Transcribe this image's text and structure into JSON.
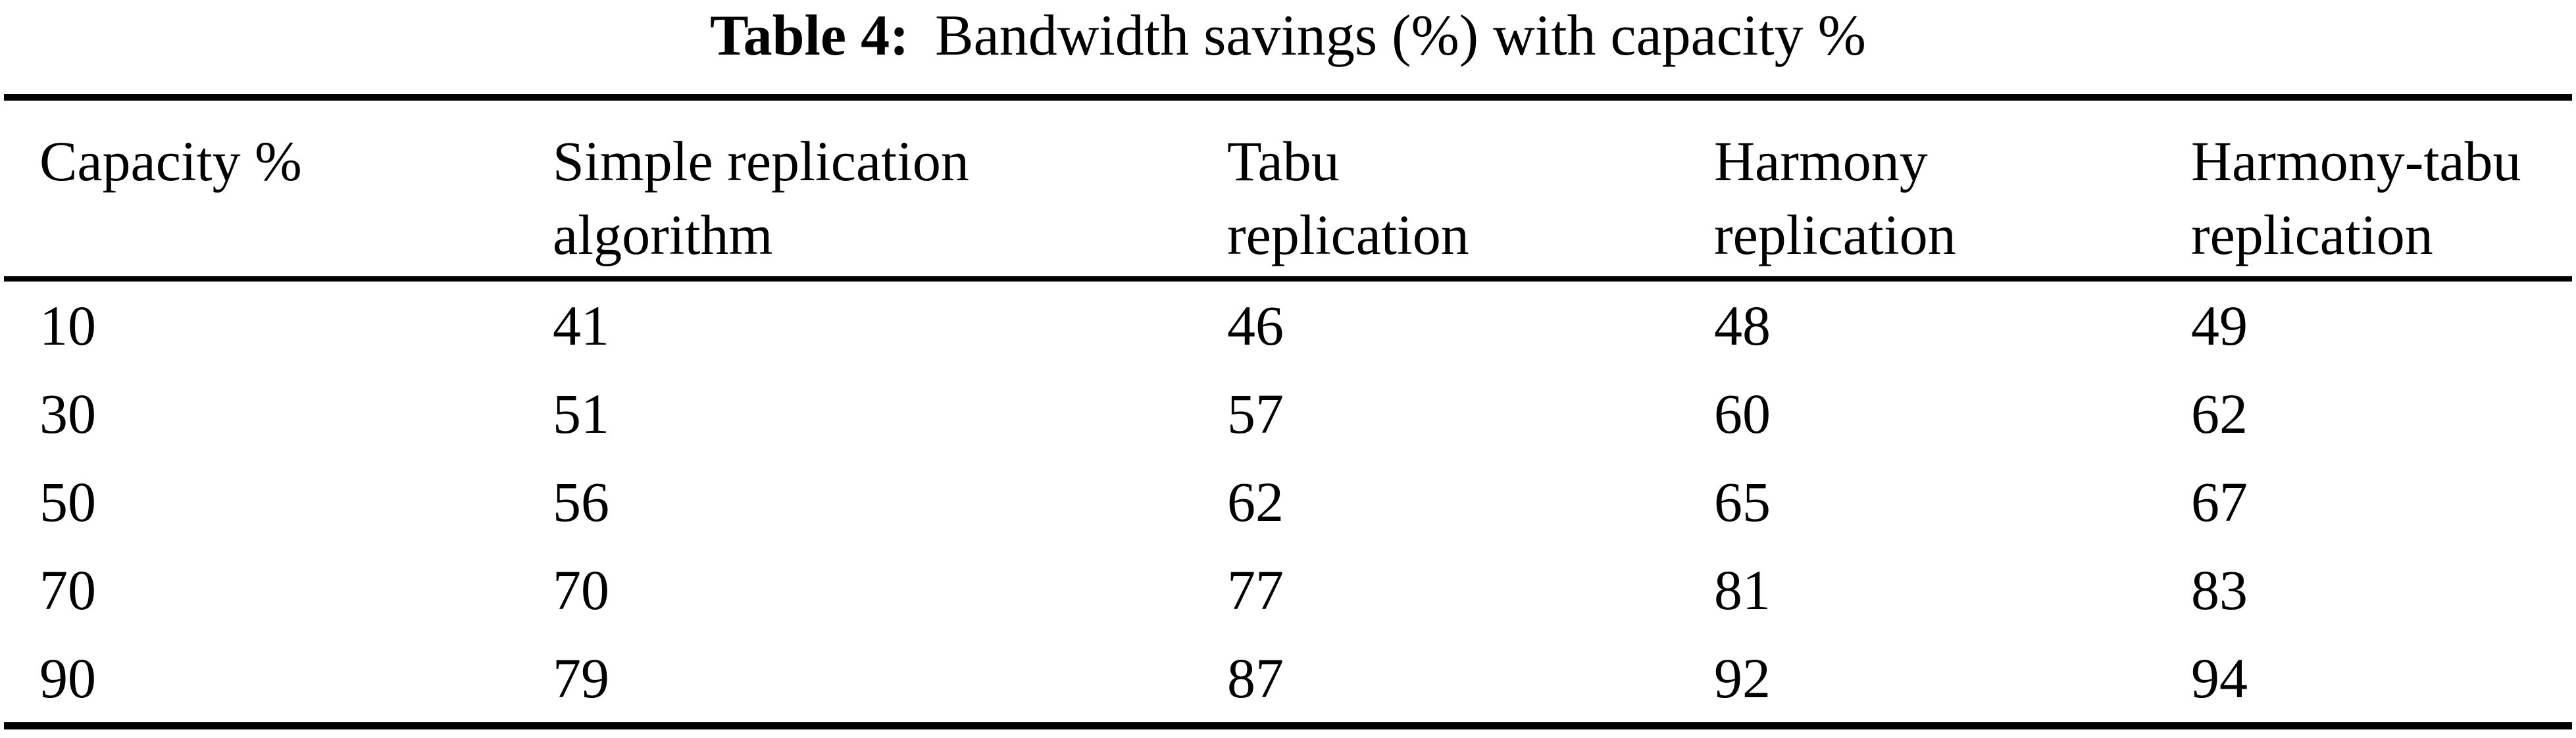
{
  "caption": {
    "label": "Table 4:",
    "text": "Bandwidth savings (%) with capacity %"
  },
  "columns": [
    {
      "label": "Capacity %",
      "lines": [
        "Capacity %",
        ""
      ]
    },
    {
      "label": "Simple replication algorithm",
      "lines": [
        "Simple replication",
        "algorithm"
      ]
    },
    {
      "label": "Tabu replication",
      "lines": [
        "Tabu",
        "replication"
      ]
    },
    {
      "label": "Harmony replication",
      "lines": [
        "Harmony",
        "replication"
      ]
    },
    {
      "label": "Harmony-tabu replication",
      "lines": [
        "Harmony-tabu",
        "replication"
      ]
    }
  ],
  "rows": [
    {
      "cells": [
        "10",
        "41",
        "46",
        "48",
        "49"
      ]
    },
    {
      "cells": [
        "30",
        "51",
        "57",
        "60",
        "62"
      ]
    },
    {
      "cells": [
        "50",
        "56",
        "62",
        "65",
        "67"
      ]
    },
    {
      "cells": [
        "70",
        "70",
        "77",
        "81",
        "83"
      ]
    },
    {
      "cells": [
        "90",
        "79",
        "87",
        "92",
        "94"
      ]
    }
  ],
  "colors": {
    "text": "#000000",
    "background": "#ffffff",
    "rule": "#000000"
  },
  "chart_data": {
    "type": "table",
    "title": "Table 4: Bandwidth savings (%) with capacity %",
    "columns": [
      "Capacity %",
      "Simple replication algorithm",
      "Tabu replication",
      "Harmony replication",
      "Harmony-tabu replication"
    ],
    "categories": [
      10,
      30,
      50,
      70,
      90
    ],
    "series": [
      {
        "name": "Simple replication algorithm",
        "values": [
          41,
          51,
          56,
          70,
          79
        ]
      },
      {
        "name": "Tabu replication",
        "values": [
          46,
          57,
          62,
          77,
          87
        ]
      },
      {
        "name": "Harmony replication",
        "values": [
          48,
          60,
          65,
          81,
          92
        ]
      },
      {
        "name": "Harmony-tabu replication",
        "values": [
          49,
          62,
          67,
          83,
          94
        ]
      }
    ],
    "xlabel": "Capacity %",
    "ylabel": "Bandwidth savings (%)"
  }
}
